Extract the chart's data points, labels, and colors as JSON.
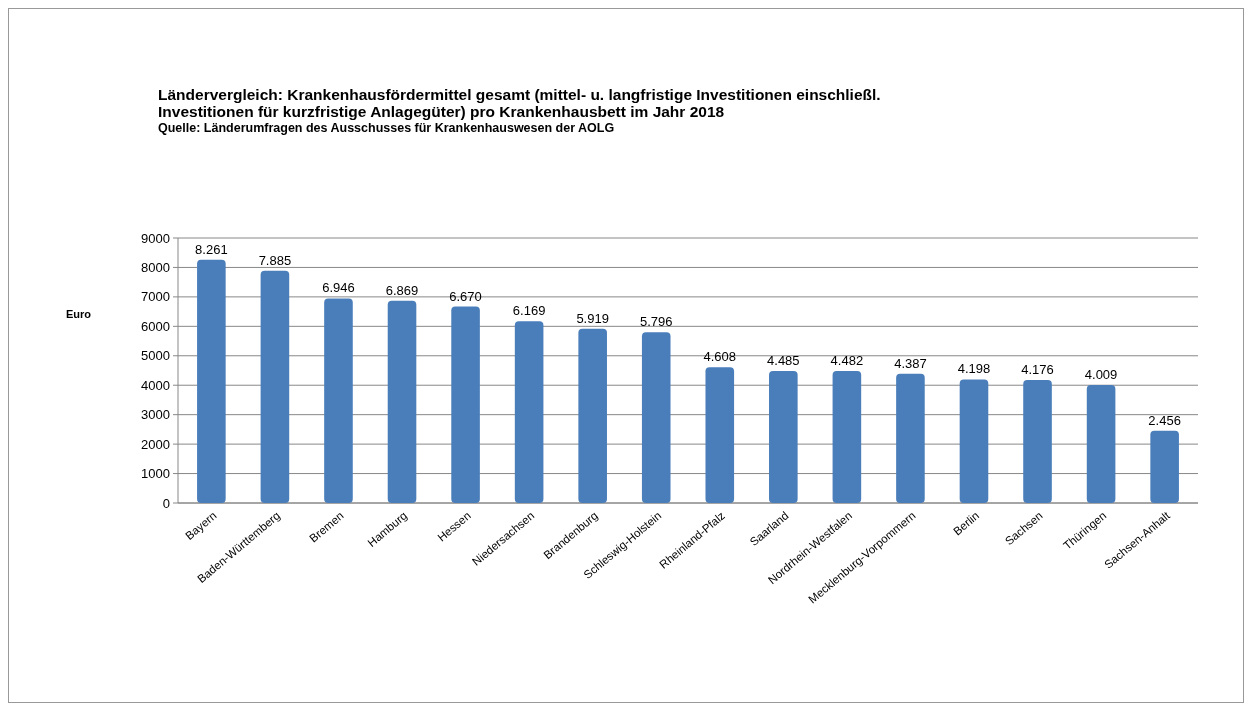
{
  "chart_data": {
    "type": "bar",
    "title": "Ländervergleich: Krankenhausfördermittel gesamt (mittel- u. langfristige Investitionen einschließl. Investitionen für kurzfristige Anlagegüter) pro Krankenhausbett im Jahr 2018",
    "subtitle": "Quelle: Länderumfragen des Ausschusses für Krankenhauswesen der AOLG",
    "ylabel": "Euro",
    "categories": [
      "Bayern",
      "Baden-Württemberg",
      "Bremen",
      "Hamburg",
      "Hessen",
      "Niedersachsen",
      "Brandenburg",
      "Schleswig-Holstein",
      "Rheinland-Pfalz",
      "Saarland",
      "Nordrhein-Westfalen",
      "Mecklenburg-Vorpommern",
      "Berlin",
      "Sachsen",
      "Thüringen",
      "Sachsen-Anhalt"
    ],
    "values": [
      8261,
      7885,
      6946,
      6869,
      6670,
      6169,
      5919,
      5796,
      4608,
      4485,
      4482,
      4387,
      4198,
      4176,
      4009,
      2456
    ],
    "value_labels": [
      "8.261",
      "7.885",
      "6.946",
      "6.869",
      "6.670",
      "6.169",
      "5.919",
      "5.796",
      "4.608",
      "4.485",
      "4.482",
      "4.387",
      "4.198",
      "4.176",
      "4.009",
      "2.456"
    ],
    "color": "#4a7ebb",
    "ylim": [
      0,
      9000
    ],
    "yticks": [
      0,
      1000,
      2000,
      3000,
      4000,
      5000,
      6000,
      7000,
      8000,
      9000
    ],
    "grid": "y"
  }
}
